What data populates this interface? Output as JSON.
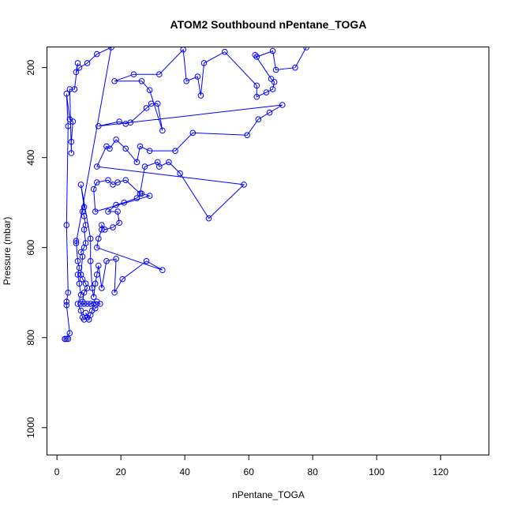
{
  "chart_data": {
    "type": "line",
    "title": "ATOM2 Southbound nPentane_TOGA",
    "xlabel": "nPentane_TOGA",
    "ylabel": "Pressure (mbar)",
    "xlim": [
      -3,
      135
    ],
    "ylim": [
      1060,
      155
    ],
    "y_reversed": true,
    "x_ticks": [
      0,
      20,
      40,
      60,
      80,
      100,
      120
    ],
    "y_ticks": [
      200,
      400,
      600,
      800,
      1000
    ],
    "series": [
      {
        "marker": "open-circle",
        "color": "#0000ff",
        "points": [
          [
            2.5,
            803
          ],
          [
            3.5,
            803
          ],
          [
            3.0,
            803
          ],
          [
            2.5,
            803
          ],
          [
            4.0,
            790
          ],
          [
            3.0,
            728
          ],
          [
            3.0,
            720
          ],
          [
            3.5,
            700
          ],
          [
            3.0,
            550
          ],
          [
            3.5,
            330
          ],
          [
            3.0,
            258
          ],
          [
            4.0,
            315
          ],
          [
            5.0,
            320
          ],
          [
            4.5,
            365
          ],
          [
            4.5,
            390
          ],
          [
            4.0,
            248
          ],
          [
            5.5,
            248
          ],
          [
            6.5,
            190
          ],
          [
            6.0,
            210
          ],
          [
            7.0,
            200
          ],
          [
            9.5,
            190
          ],
          [
            12.5,
            170
          ],
          [
            17.0,
            155
          ],
          [
            6.0,
            590
          ],
          [
            6.0,
            585
          ],
          [
            6.5,
            630
          ],
          [
            7.0,
            645
          ],
          [
            6.5,
            660
          ],
          [
            7.0,
            680
          ],
          [
            7.5,
            705
          ],
          [
            6.5,
            725
          ],
          [
            7.5,
            740
          ],
          [
            8.0,
            755
          ],
          [
            8.5,
            760
          ],
          [
            9.5,
            755
          ],
          [
            9.0,
            745
          ],
          [
            10.0,
            760
          ],
          [
            10.5,
            750
          ],
          [
            11.0,
            740
          ],
          [
            11.5,
            725
          ],
          [
            12.0,
            735
          ],
          [
            13.5,
            725
          ],
          [
            12.5,
            720
          ],
          [
            10.5,
            725
          ],
          [
            9.5,
            725
          ],
          [
            8.5,
            725
          ],
          [
            7.5,
            725
          ],
          [
            8.0,
            720
          ],
          [
            8.5,
            700
          ],
          [
            9.5,
            690
          ],
          [
            9.0,
            680
          ],
          [
            8.0,
            670
          ],
          [
            7.5,
            660
          ],
          [
            8.0,
            620
          ],
          [
            7.5,
            610
          ],
          [
            8.5,
            600
          ],
          [
            9.0,
            590
          ],
          [
            8.5,
            560
          ],
          [
            9.0,
            550
          ],
          [
            8.5,
            530
          ],
          [
            8.0,
            520
          ],
          [
            8.5,
            510
          ],
          [
            7.5,
            460
          ],
          [
            10.5,
            580
          ],
          [
            10.5,
            630
          ],
          [
            11.0,
            690
          ],
          [
            11.5,
            710
          ],
          [
            12.0,
            680
          ],
          [
            12.5,
            660
          ],
          [
            13.0,
            640
          ],
          [
            14.0,
            690
          ],
          [
            15.5,
            630
          ],
          [
            18.5,
            625
          ],
          [
            18.0,
            700
          ],
          [
            20.5,
            670
          ],
          [
            28.0,
            630
          ],
          [
            33.0,
            650
          ],
          [
            12.5,
            600
          ],
          [
            13.0,
            580
          ],
          [
            14.0,
            560
          ],
          [
            14.0,
            550
          ],
          [
            15.0,
            560
          ],
          [
            17.5,
            555
          ],
          [
            19.5,
            545
          ],
          [
            19.0,
            520
          ],
          [
            16.0,
            520
          ],
          [
            18.5,
            505
          ],
          [
            21.0,
            500
          ],
          [
            25.0,
            490
          ],
          [
            26.5,
            480
          ],
          [
            29.0,
            485
          ],
          [
            12.0,
            520
          ],
          [
            11.5,
            470
          ],
          [
            12.5,
            455
          ],
          [
            16.0,
            450
          ],
          [
            17.5,
            460
          ],
          [
            19.0,
            455
          ],
          [
            21.5,
            450
          ],
          [
            26.0,
            480
          ],
          [
            27.5,
            420
          ],
          [
            31.5,
            410
          ],
          [
            32.0,
            420
          ],
          [
            35.0,
            410
          ],
          [
            38.5,
            435
          ],
          [
            47.5,
            535
          ],
          [
            58.5,
            460
          ],
          [
            12.5,
            420
          ],
          [
            15.5,
            375
          ],
          [
            16.5,
            380
          ],
          [
            18.5,
            360
          ],
          [
            21.5,
            380
          ],
          [
            25.0,
            410
          ],
          [
            26.0,
            375
          ],
          [
            29.0,
            385
          ],
          [
            37.0,
            385
          ],
          [
            42.5,
            345
          ],
          [
            59.5,
            350
          ],
          [
            63.0,
            315
          ],
          [
            66.5,
            300
          ],
          [
            70.5,
            283
          ],
          [
            13.0,
            330
          ],
          [
            19.5,
            320
          ],
          [
            21.5,
            325
          ],
          [
            23.0,
            322
          ],
          [
            28.0,
            290
          ],
          [
            29.5,
            280
          ],
          [
            31.5,
            280
          ],
          [
            33.0,
            340
          ],
          [
            29.0,
            250
          ],
          [
            26.5,
            230
          ],
          [
            18.0,
            230
          ],
          [
            24.0,
            215
          ],
          [
            32.0,
            215
          ],
          [
            39.5,
            160
          ],
          [
            40.5,
            230
          ],
          [
            44.0,
            220
          ],
          [
            45.0,
            262
          ],
          [
            46.0,
            190
          ],
          [
            52.5,
            165
          ],
          [
            62.5,
            240
          ],
          [
            62.5,
            265
          ],
          [
            65.5,
            255
          ],
          [
            67.5,
            248
          ],
          [
            68.0,
            232
          ],
          [
            67.0,
            225
          ],
          [
            62.0,
            172
          ],
          [
            62.5,
            176
          ],
          [
            67.5,
            163
          ],
          [
            68.5,
            205
          ],
          [
            74.5,
            200
          ],
          [
            78.0,
            155
          ]
        ]
      }
    ]
  }
}
